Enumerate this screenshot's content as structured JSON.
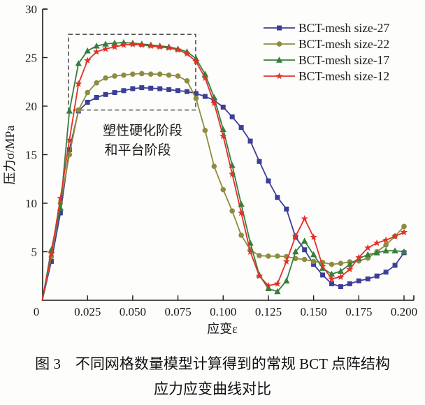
{
  "figure": {
    "caption_line1": "图 3　不同网格数量模型计算得到的常规 BCT 点阵结构",
    "caption_line2": "应力应变曲线对比"
  },
  "chart_data": {
    "type": "line",
    "title": "",
    "xlabel": "应变ε",
    "ylabel": "压力σ/MPa",
    "xlim": [
      0,
      0.2
    ],
    "ylim": [
      0,
      30
    ],
    "grid": false,
    "legend_position": "top-right",
    "x_ticks": [
      0,
      0.025,
      0.05,
      0.075,
      0.1,
      0.125,
      0.15,
      0.175,
      0.2
    ],
    "x_tick_labels": [
      "0",
      "0.025",
      "0.050",
      "0.075",
      "0.100",
      "0.125",
      "0.150",
      "0.175",
      "0.200"
    ],
    "y_ticks": [
      0,
      5,
      10,
      15,
      20,
      25,
      30
    ],
    "y_tick_labels": [
      "0",
      "5",
      "10",
      "15",
      "20",
      "25",
      "30"
    ],
    "x": [
      0,
      0.005,
      0.01,
      0.015,
      0.02,
      0.025,
      0.03,
      0.035,
      0.04,
      0.045,
      0.05,
      0.055,
      0.06,
      0.065,
      0.07,
      0.075,
      0.08,
      0.085,
      0.09,
      0.095,
      0.1,
      0.105,
      0.11,
      0.115,
      0.12,
      0.125,
      0.13,
      0.135,
      0.14,
      0.145,
      0.15,
      0.155,
      0.16,
      0.165,
      0.17,
      0.175,
      0.18,
      0.185,
      0.19,
      0.195,
      0.2
    ],
    "series": [
      {
        "name": "BCT-mesh size-27",
        "color": "#3b3f96",
        "marker": "square",
        "values": [
          0,
          4.0,
          9.0,
          15.5,
          19.5,
          20.4,
          20.9,
          21.2,
          21.4,
          21.6,
          21.8,
          21.9,
          21.85,
          21.8,
          21.7,
          21.6,
          21.5,
          21.3,
          21.0,
          20.6,
          19.9,
          18.9,
          17.8,
          16.4,
          14.3,
          12.3,
          10.6,
          9.4,
          6.5,
          5.2,
          3.7,
          2.6,
          1.7,
          1.4,
          1.7,
          2.0,
          2.2,
          2.5,
          2.9,
          3.6,
          4.9
        ]
      },
      {
        "name": "BCT-mesh size-22",
        "color": "#8e8c3e",
        "marker": "circle",
        "values": [
          0,
          4.5,
          10.0,
          15.0,
          19.6,
          21.4,
          22.4,
          22.9,
          23.1,
          23.2,
          23.3,
          23.35,
          23.3,
          23.3,
          23.2,
          23.1,
          22.6,
          20.8,
          17.5,
          13.8,
          11.4,
          9.2,
          6.7,
          5.2,
          4.6,
          4.55,
          4.55,
          4.5,
          4.3,
          4.2,
          4.0,
          3.9,
          3.7,
          3.8,
          3.95,
          4.05,
          4.35,
          5.0,
          5.7,
          6.6,
          7.6
        ]
      },
      {
        "name": "BCT-mesh size-17",
        "color": "#377e3a",
        "marker": "triangle",
        "values": [
          0,
          5.2,
          9.5,
          19.5,
          24.4,
          25.7,
          26.2,
          26.4,
          26.5,
          26.55,
          26.5,
          26.4,
          26.3,
          26.2,
          26.1,
          25.9,
          25.6,
          24.9,
          23.3,
          20.9,
          17.6,
          13.9,
          9.9,
          5.9,
          2.6,
          1.2,
          0.9,
          2.0,
          5.0,
          6.1,
          4.7,
          3.3,
          2.7,
          3.0,
          3.7,
          4.3,
          4.7,
          4.9,
          5.1,
          5.1,
          5.0
        ]
      },
      {
        "name": "BCT-mesh size-12",
        "color": "#e03228",
        "marker": "star",
        "values": [
          0,
          4.8,
          10.5,
          16.5,
          22.3,
          24.7,
          25.6,
          25.9,
          26.1,
          26.3,
          26.35,
          26.3,
          26.2,
          26.1,
          26.0,
          25.8,
          25.4,
          24.6,
          22.9,
          20.3,
          16.9,
          13.0,
          9.0,
          5.0,
          2.5,
          1.5,
          1.7,
          4.0,
          6.6,
          8.4,
          6.5,
          3.5,
          2.2,
          2.4,
          3.2,
          4.4,
          5.4,
          5.9,
          6.2,
          6.6,
          7.0
        ]
      }
    ],
    "annotation": {
      "box": {
        "x0": 0.0145,
        "x1": 0.0848,
        "y0": 19.6,
        "y1": 27.4
      },
      "text_line1": "塑性硬化阶段",
      "text_line2": "和平台阶段"
    }
  }
}
